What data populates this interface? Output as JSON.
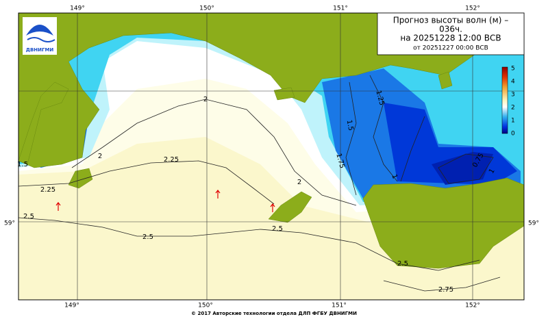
{
  "header": {
    "title": "Прогноз высоты волн (м) –",
    "lead": "036ч.",
    "valid": "на 20251228 12:00 ВСВ",
    "issued": "от 20251227 00:00 ВСВ"
  },
  "logo": "ДВНИГМИ",
  "longitudes_top": [
    "149°",
    "150°",
    "151°",
    "152°"
  ],
  "longitudes_bottom": [
    "149°",
    "150°",
    "151°",
    "152°"
  ],
  "latitudes": {
    "left": "59°",
    "right": "59°"
  },
  "colorbar_ticks": [
    "5",
    "4",
    "3",
    "2",
    "1",
    "0"
  ],
  "contour_labels": [
    "2",
    "2",
    "2",
    "2.25",
    "2.25",
    "2.5",
    "2.5",
    "2.5",
    "2.5",
    "2.75",
    "1.5",
    "1.25",
    "1.5",
    "1.75",
    "1",
    "0.75",
    "1"
  ],
  "footer": "© 2017 Авторские технологии отдела ДЛП ФГБУ ДВНИГМИ"
}
